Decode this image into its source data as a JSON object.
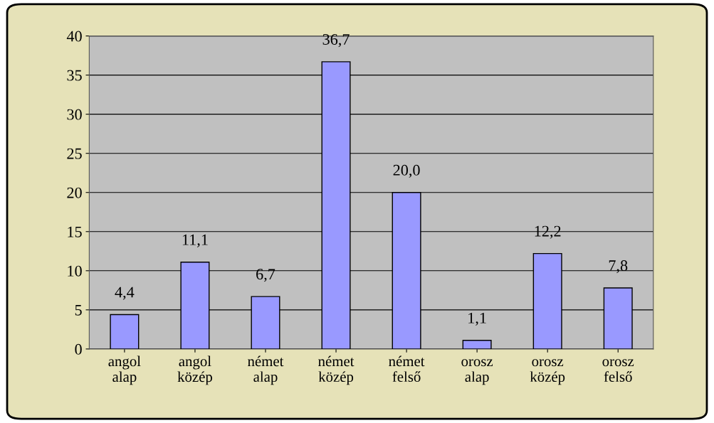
{
  "chart_data": {
    "type": "bar",
    "categories": [
      "angol\nalap",
      "angol\nközép",
      "német\nalap",
      "német\nközép",
      "német\nfelső",
      "orosz\nalap",
      "orosz\nközép",
      "orosz\nfelső"
    ],
    "values": [
      4.4,
      11.1,
      6.7,
      36.7,
      20.0,
      1.1,
      12.2,
      7.8
    ],
    "value_labels": [
      "4,4",
      "11,1",
      "6,7",
      "36,7",
      "20,0",
      "1,1",
      "12,2",
      "7,8"
    ],
    "color": "#9999ff",
    "ylim": [
      0,
      40
    ],
    "yticks": [
      0,
      5,
      10,
      15,
      20,
      25,
      30,
      35,
      40
    ],
    "grid": "y",
    "legend": false
  }
}
